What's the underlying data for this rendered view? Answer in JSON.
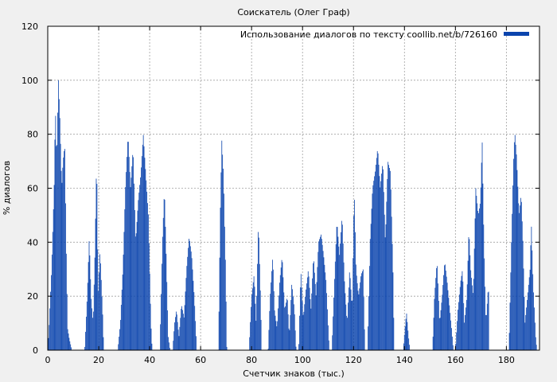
{
  "chart_data": {
    "type": "bar",
    "title": "Соискатель (Олег Граф)",
    "xlabel": "Счетчик знаков (тыс.)",
    "ylabel": "% диалогов",
    "xlim": [
      0,
      193
    ],
    "ylim": [
      0,
      120
    ],
    "xticks": [
      0,
      20,
      40,
      60,
      80,
      100,
      120,
      140,
      160,
      180
    ],
    "yticks": [
      0,
      20,
      40,
      60,
      80,
      100,
      120
    ],
    "grid": true,
    "legend_position": "top-right",
    "series": [
      {
        "name": "Использование диалогов по тексту coollib.net/b/726160",
        "color": "#0b44ad",
        "bar_width": 0.28,
        "envelope": [
          [
            0,
            0
          ],
          [
            0.5,
            8
          ],
          [
            1.5,
            30
          ],
          [
            2.5,
            60
          ],
          [
            3,
            90
          ],
          [
            3.5,
            70
          ],
          [
            4.2,
            100
          ],
          [
            4.8,
            85
          ],
          [
            5.5,
            60
          ],
          [
            6,
            70
          ],
          [
            6.7,
            76
          ],
          [
            7.2,
            40
          ],
          [
            7.8,
            8
          ],
          [
            8.5,
            4
          ],
          [
            9.5,
            0
          ],
          [
            14.5,
            0
          ],
          [
            15.5,
            20
          ],
          [
            16.3,
            42
          ],
          [
            17,
            20
          ],
          [
            17.8,
            10
          ],
          [
            18.5,
            35
          ],
          [
            19.2,
            72
          ],
          [
            19.8,
            20
          ],
          [
            20.5,
            37
          ],
          [
            21.5,
            15
          ],
          [
            22,
            0
          ],
          [
            27.5,
            0
          ],
          [
            28.5,
            10
          ],
          [
            29.5,
            30
          ],
          [
            30.5,
            60
          ],
          [
            31.5,
            80
          ],
          [
            32.5,
            60
          ],
          [
            33.5,
            75
          ],
          [
            34.5,
            40
          ],
          [
            35.5,
            55
          ],
          [
            36.5,
            65
          ],
          [
            37.5,
            80
          ],
          [
            38.5,
            65
          ],
          [
            39.5,
            50
          ],
          [
            40.5,
            10
          ],
          [
            41,
            0
          ],
          [
            44,
            0
          ],
          [
            45,
            40
          ],
          [
            45.8,
            60
          ],
          [
            46.5,
            35
          ],
          [
            47.3,
            5
          ],
          [
            48,
            0
          ],
          [
            49,
            0
          ],
          [
            49.8,
            10
          ],
          [
            50.5,
            15
          ],
          [
            51.5,
            5
          ],
          [
            52.5,
            17
          ],
          [
            53.5,
            12
          ],
          [
            54.5,
            30
          ],
          [
            55.5,
            42
          ],
          [
            56.5,
            35
          ],
          [
            57.5,
            20
          ],
          [
            58.5,
            0
          ],
          [
            67,
            0
          ],
          [
            67.7,
            50
          ],
          [
            68.3,
            78
          ],
          [
            69,
            65
          ],
          [
            69.8,
            30
          ],
          [
            70.3,
            0
          ],
          [
            79,
            0
          ],
          [
            80,
            20
          ],
          [
            81,
            28
          ],
          [
            81.8,
            10
          ],
          [
            82.7,
            48
          ],
          [
            83.5,
            20
          ],
          [
            84,
            0
          ],
          [
            86.5,
            0
          ],
          [
            87.3,
            20
          ],
          [
            88.3,
            35
          ],
          [
            89,
            15
          ],
          [
            90,
            8
          ],
          [
            91,
            25
          ],
          [
            92,
            35
          ],
          [
            93,
            15
          ],
          [
            94,
            20
          ],
          [
            94.8,
            5
          ],
          [
            95.8,
            25
          ],
          [
            96.8,
            15
          ],
          [
            97.5,
            0
          ],
          [
            98.5,
            0
          ],
          [
            99.3,
            30
          ],
          [
            100.3,
            12
          ],
          [
            101.3,
            22
          ],
          [
            102.3,
            30
          ],
          [
            103.3,
            15
          ],
          [
            104.3,
            35
          ],
          [
            105.3,
            20
          ],
          [
            106.3,
            40
          ],
          [
            107.3,
            43
          ],
          [
            108.3,
            35
          ],
          [
            109.3,
            25
          ],
          [
            110,
            10
          ],
          [
            110.5,
            0
          ],
          [
            111.5,
            0
          ],
          [
            112.5,
            25
          ],
          [
            113.5,
            48
          ],
          [
            114.5,
            35
          ],
          [
            115.5,
            50
          ],
          [
            116.5,
            25
          ],
          [
            117.5,
            10
          ],
          [
            118.5,
            30
          ],
          [
            119.5,
            15
          ],
          [
            120.3,
            60
          ],
          [
            121,
            30
          ],
          [
            122,
            20
          ],
          [
            123,
            28
          ],
          [
            123.8,
            30
          ],
          [
            124.5,
            0
          ],
          [
            125.5,
            0
          ],
          [
            126.5,
            40
          ],
          [
            127.5,
            60
          ],
          [
            128.5,
            66
          ],
          [
            129.5,
            75
          ],
          [
            130.5,
            60
          ],
          [
            131.5,
            70
          ],
          [
            132.5,
            40
          ],
          [
            133.5,
            70
          ],
          [
            134.5,
            66
          ],
          [
            135.5,
            30
          ],
          [
            136,
            0
          ],
          [
            139.5,
            0
          ],
          [
            140.2,
            8
          ],
          [
            140.8,
            14
          ],
          [
            141.6,
            5
          ],
          [
            142.2,
            0
          ],
          [
            151,
            0
          ],
          [
            151.8,
            20
          ],
          [
            152.8,
            33
          ],
          [
            153.8,
            10
          ],
          [
            154.8,
            20
          ],
          [
            155.8,
            33
          ],
          [
            156.8,
            25
          ],
          [
            157.8,
            15
          ],
          [
            158.5,
            8
          ],
          [
            159.2,
            0
          ],
          [
            160,
            0
          ],
          [
            161,
            15
          ],
          [
            162,
            25
          ],
          [
            162.8,
            30
          ],
          [
            163.5,
            10
          ],
          [
            164.5,
            20
          ],
          [
            165.3,
            45
          ],
          [
            166,
            30
          ],
          [
            167,
            20
          ],
          [
            168,
            60
          ],
          [
            169,
            50
          ],
          [
            169.8,
            55
          ],
          [
            170.5,
            78
          ],
          [
            171.2,
            40
          ],
          [
            172,
            10
          ],
          [
            173,
            25
          ],
          [
            173.3,
            0
          ],
          [
            181,
            0
          ],
          [
            182,
            40
          ],
          [
            182.8,
            70
          ],
          [
            183.3,
            81
          ],
          [
            184,
            72
          ],
          [
            185,
            50
          ],
          [
            185.8,
            58
          ],
          [
            186.5,
            40
          ],
          [
            187.3,
            10
          ],
          [
            188.3,
            20
          ],
          [
            189.3,
            30
          ],
          [
            189.8,
            47
          ],
          [
            190.5,
            25
          ],
          [
            191.5,
            5
          ],
          [
            192,
            0
          ]
        ]
      }
    ]
  }
}
